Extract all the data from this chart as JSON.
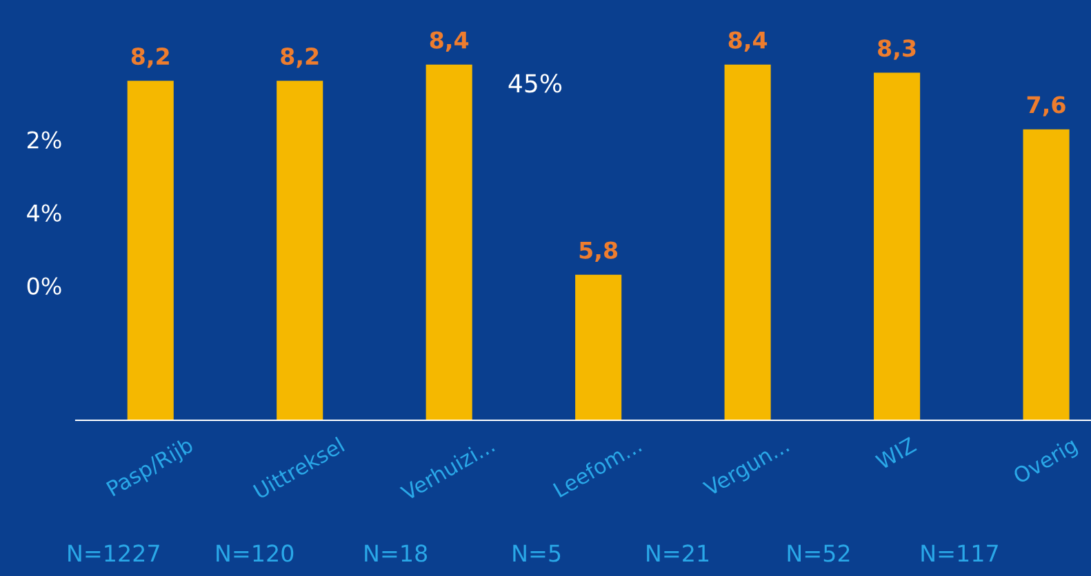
{
  "chart_data": {
    "type": "bar",
    "categories": [
      "Pasp/Rijb",
      "Uittreksel",
      "Verhuizi...",
      "Leefom...",
      "Vergun...",
      "WIZ",
      "Overig"
    ],
    "values": [
      8.2,
      8.2,
      8.4,
      5.8,
      8.4,
      8.3,
      7.6
    ],
    "value_labels": [
      "8,2",
      "8,2",
      "8,4",
      "5,8",
      "8,4",
      "8,3",
      "7,6"
    ],
    "color": "#f5b800",
    "ylim": [
      4,
      9.2
    ],
    "tick_labels": "x",
    "grid": false,
    "legend": false,
    "annotations": [
      "N=1227",
      "N=120",
      "N=18",
      "N=5",
      "N=21",
      "N=52",
      "N=117",
      "45%",
      "2%",
      "4%",
      "0%"
    ]
  }
}
